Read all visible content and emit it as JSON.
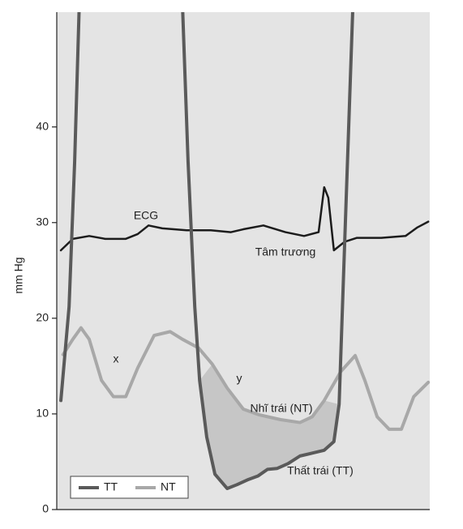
{
  "chart_data": {
    "type": "line",
    "ylabel": "mm Hg",
    "xlim": [
      0,
      100
    ],
    "ylim": [
      0,
      52
    ],
    "yticks": [
      0,
      10,
      20,
      30,
      40
    ],
    "background": "#e4e4e4",
    "fill_color": "#c6c6c6",
    "legend": "lower left",
    "series": [
      {
        "name": "TT",
        "color": "#5a5a5a",
        "x": [
          1.1,
          3.3,
          4.8,
          6.2,
          null,
          33.5,
          35.2,
          37.0,
          38.3,
          40.2,
          42.4,
          45.7,
          48.3,
          51.1,
          53.9,
          56.5,
          59.1,
          62.0,
          65.2,
          68.5,
          71.7,
          74.3,
          75.7,
          77.2,
          78.7,
          79.6
        ],
        "values": [
          11.4,
          21.2,
          36.4,
          55,
          null,
          55,
          36.4,
          21.2,
          13.5,
          7.6,
          3.7,
          2.2,
          2.6,
          3.1,
          3.5,
          4.2,
          4.3,
          4.8,
          5.6,
          5.9,
          6.2,
          7.1,
          11.0,
          28.0,
          44.9,
          55
        ]
      },
      {
        "name": "NT",
        "color": "#a8a8a8",
        "x": [
          1.7,
          4.3,
          6.5,
          8.7,
          12.0,
          15.2,
          18.5,
          21.7,
          26.1,
          30.4,
          33.7,
          38.0,
          41.7,
          45.7,
          50.0,
          54.3,
          60.0,
          65.2,
          68.5,
          71.7,
          76.1,
          80.0,
          82.6,
          85.9,
          89.1,
          92.4,
          95.7,
          99.6
        ],
        "values": [
          16.2,
          17.8,
          19.0,
          17.8,
          13.5,
          11.8,
          11.8,
          14.8,
          18.2,
          18.6,
          17.8,
          16.9,
          15.2,
          12.7,
          10.5,
          9.9,
          9.4,
          9.1,
          9.7,
          11.4,
          14.4,
          16.1,
          13.5,
          9.7,
          8.4,
          8.4,
          11.8,
          13.3
        ]
      }
    ],
    "ecg": {
      "color": "#1c1c1c",
      "x": [
        1.1,
        4.3,
        8.7,
        13.0,
        18.5,
        21.7,
        24.6,
        28.3,
        34.8,
        41.3,
        46.7,
        50.0,
        55.4,
        61.3,
        66.3,
        70.2,
        71.7,
        72.8,
        74.3,
        77.2,
        80.4,
        87.0,
        93.5,
        96.7,
        99.6
      ],
      "values": [
        27.1,
        28.3,
        28.6,
        28.3,
        28.3,
        28.8,
        29.7,
        29.4,
        29.2,
        29.2,
        29.0,
        29.3,
        29.7,
        29.0,
        28.6,
        29.0,
        33.7,
        32.6,
        27.1,
        28.0,
        28.4,
        28.4,
        28.6,
        29.5,
        30.1
      ]
    },
    "annotations": [
      "ECG",
      "Tâm trương",
      "x",
      "y",
      "Nhĩ trái (NT)",
      "Thất trái (TT)"
    ]
  }
}
